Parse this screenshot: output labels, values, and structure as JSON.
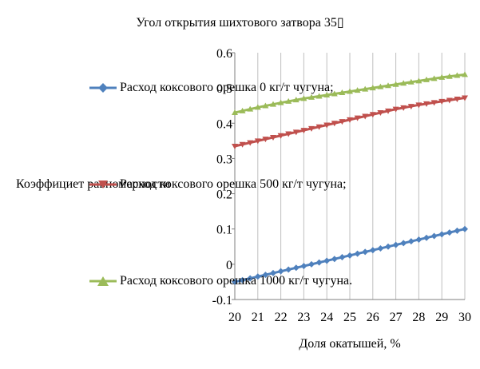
{
  "chart_data": {
    "type": "line",
    "title": "Угол открытия шихтового затвора 35",
    "title_suffix_glyph": "▯",
    "xlabel": "Доля окатышей, %",
    "ylabel": "Коэффициет равномерности",
    "x": [
      20,
      21,
      22,
      23,
      24,
      25,
      26,
      27,
      28,
      29,
      30
    ],
    "xlim": [
      20,
      30
    ],
    "ylim": [
      -0.1,
      0.6
    ],
    "y_ticks": [
      "-0.1",
      "0",
      "0.1",
      "0.2",
      "0.3",
      "0.4",
      "0.5",
      "0.6"
    ],
    "x_ticks": [
      "20",
      "21",
      "22",
      "23",
      "24",
      "25",
      "26",
      "27",
      "28",
      "29",
      "30"
    ],
    "grid": "vertical",
    "series": [
      {
        "name": "Расход коксового орешка 0 кг/т чугуна;",
        "color": "#4f81bd",
        "marker": "diamond",
        "values": [
          -0.05,
          -0.035,
          -0.02,
          -0.005,
          0.01,
          0.025,
          0.04,
          0.055,
          0.07,
          0.085,
          0.1
        ]
      },
      {
        "name": "Расход коксового орешка 500 кг/т чугуна;",
        "color": "#c0504d",
        "marker": "triangle-down",
        "values": [
          0.335,
          0.35,
          0.365,
          0.38,
          0.395,
          0.41,
          0.425,
          0.44,
          0.452,
          0.462,
          0.472
        ]
      },
      {
        "name": "Расход коксового орешка 1000 кг/т чугуна.",
        "color": "#9bbb59",
        "marker": "triangle-up",
        "values": [
          0.43,
          0.445,
          0.458,
          0.47,
          0.48,
          0.49,
          0.5,
          0.51,
          0.52,
          0.53,
          0.538
        ]
      }
    ]
  }
}
